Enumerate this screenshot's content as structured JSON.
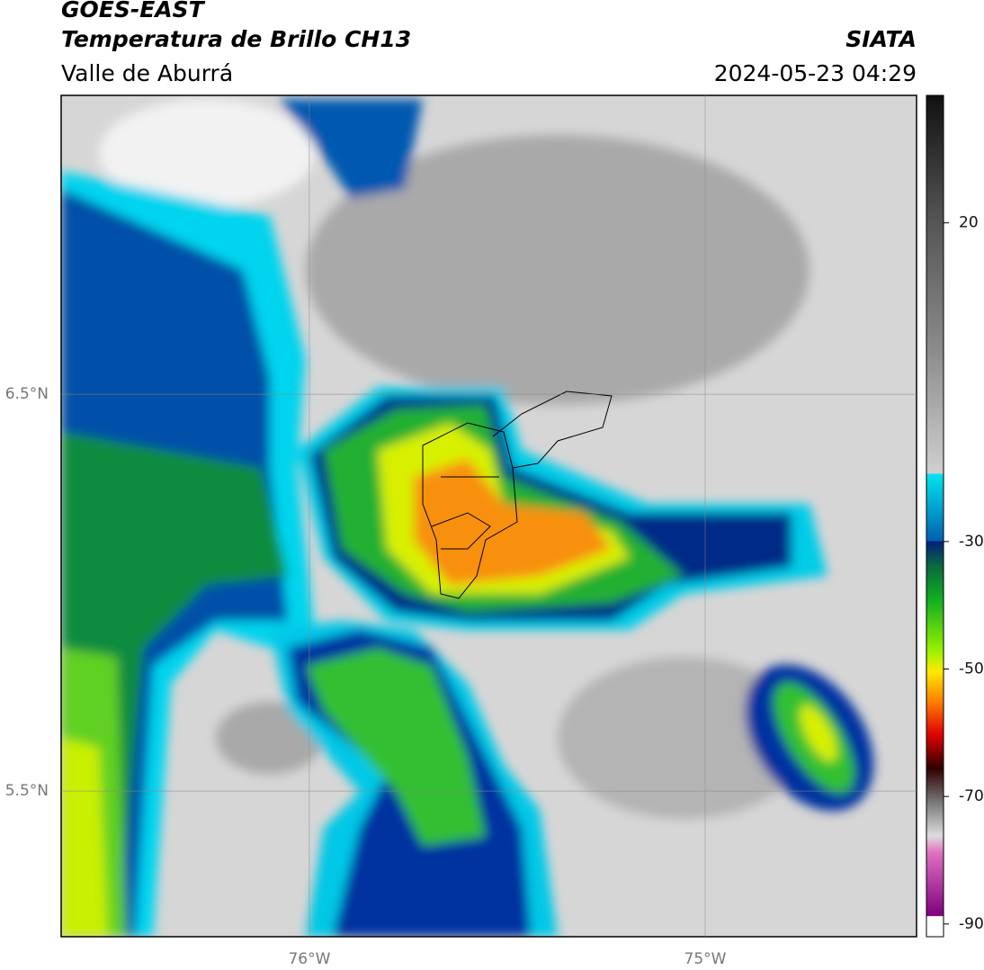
{
  "header": {
    "satellite": "GOES-EAST",
    "product": "Temperatura de Brillo CH13",
    "region": "Valle de Aburrá",
    "agency": "SIATA",
    "datetime": "2024-05-23 04:29"
  },
  "map": {
    "xlim": [
      -76.627,
      -74.466
    ],
    "ylim": [
      5.133,
      7.253
    ],
    "xticks": [
      {
        "value": -76,
        "label": "76°W"
      },
      {
        "value": -75,
        "label": "75°W"
      }
    ],
    "yticks": [
      {
        "value": 6.5,
        "label": "6.5°N"
      },
      {
        "value": 5.5,
        "label": "5.5°N"
      }
    ]
  },
  "colorbar": {
    "lim": [
      -92,
      40
    ],
    "ticks": [
      20,
      -30,
      -50,
      -70,
      -90
    ]
  }
}
